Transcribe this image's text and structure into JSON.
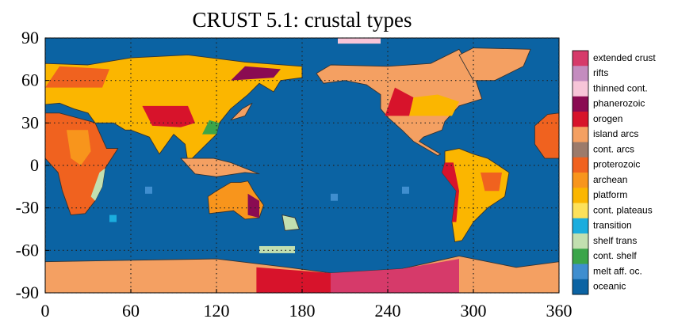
{
  "map": {
    "title": "CRUST 5.1: crustal types",
    "xlim": [
      0,
      360
    ],
    "ylim": [
      -90,
      90
    ],
    "xticks": [
      0,
      60,
      120,
      180,
      240,
      300,
      360
    ],
    "yticks": [
      90,
      60,
      30,
      0,
      -30,
      -60,
      -90
    ],
    "grid": true,
    "legend": [
      {
        "label": "extended crust",
        "color": "#d63a6a"
      },
      {
        "label": "rifts",
        "color": "#c48cbf"
      },
      {
        "label": "thinned cont.",
        "color": "#f7c5d8"
      },
      {
        "label": "phanerozoic",
        "color": "#8a0b52"
      },
      {
        "label": "orogen",
        "color": "#d7132b"
      },
      {
        "label": "island arcs",
        "color": "#f4a062"
      },
      {
        "label": "cont. arcs",
        "color": "#9c7b6b"
      },
      {
        "label": "proterozoic",
        "color": "#f0621f"
      },
      {
        "label": "archean",
        "color": "#f8951c"
      },
      {
        "label": "platform",
        "color": "#fbb600"
      },
      {
        "label": "cont. plateaus",
        "color": "#fde15a"
      },
      {
        "label": "transition",
        "color": "#1badde"
      },
      {
        "label": "shelf trans",
        "color": "#c2dfb0"
      },
      {
        "label": "cont. shelf",
        "color": "#3ba54a"
      },
      {
        "label": "melt aff. oc.",
        "color": "#3f8ecf"
      },
      {
        "label": "oceanic",
        "color": "#0b63a3"
      }
    ]
  }
}
